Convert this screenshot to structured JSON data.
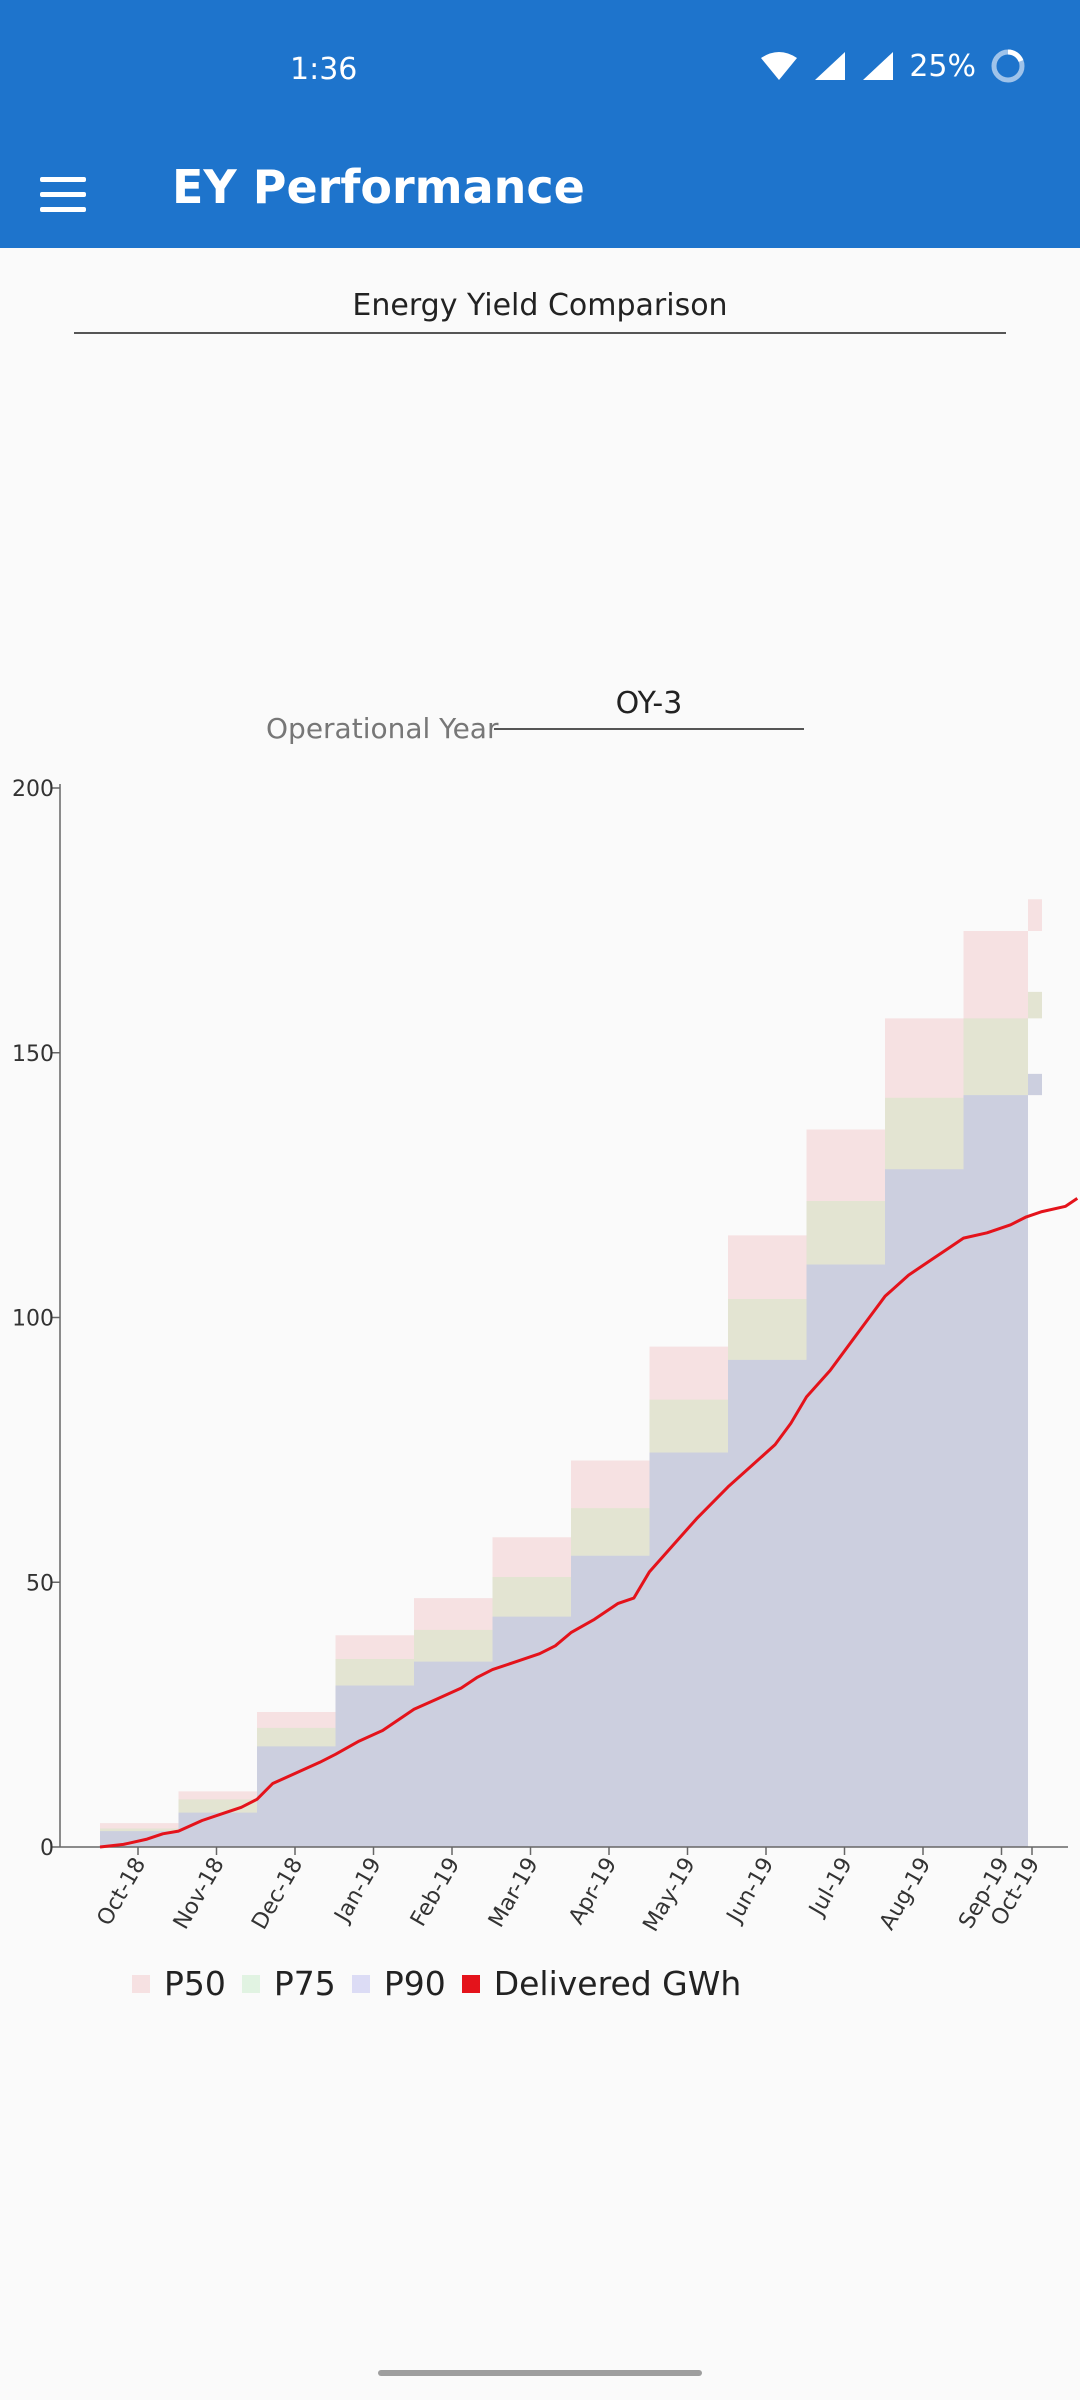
{
  "status_bar": {
    "time": "1:36",
    "battery": "25%",
    "icons": [
      "wifi-icon",
      "signal-icon",
      "signal-icon",
      "battery-icon"
    ]
  },
  "app_bar": {
    "title": "EY Performance",
    "menu_icon": "menu-icon"
  },
  "comparison_selector": {
    "value": "Energy Yield Comparison"
  },
  "operational_year": {
    "label": "Operational Year",
    "value": "OY-3"
  },
  "colors": {
    "header": "#1e74cc",
    "p50": "#f6e1e2",
    "p75": "#e3e4d2",
    "p90": "#cccfdf",
    "delivered": "#e4131b"
  },
  "chart_data": {
    "type": "area",
    "title": "",
    "xlabel": "",
    "ylabel": "",
    "ylim": [
      0,
      200
    ],
    "yticks": [
      0,
      50,
      100,
      150,
      200
    ],
    "categories": [
      "Oct-18",
      "Nov-18",
      "Dec-18",
      "Jan-19",
      "Feb-19",
      "Mar-19",
      "Apr-19",
      "May-19",
      "Jun-19",
      "Jul-19",
      "Aug-19",
      "Sep-19",
      "Oct-19"
    ],
    "step_series": [
      {
        "name": "P50",
        "values": [
          4.5,
          10.5,
          25.5,
          40,
          47,
          58.5,
          73,
          94.5,
          115.5,
          135.5,
          156.5,
          173,
          179
        ]
      },
      {
        "name": "P75",
        "values": [
          3.5,
          9,
          22.5,
          35.5,
          41,
          51,
          64,
          84.5,
          103.5,
          122,
          141.5,
          156.5,
          161.5
        ]
      },
      {
        "name": "P90",
        "values": [
          3,
          6.5,
          19,
          30.5,
          35,
          43.5,
          55,
          74.5,
          92,
          110,
          128,
          142,
          146
        ]
      }
    ],
    "line_series": {
      "name": "Delivered GWh",
      "x": [
        0,
        0.3,
        0.6,
        0.8,
        1.0,
        1.3,
        1.6,
        1.8,
        2.0,
        2.2,
        2.5,
        2.8,
        3.0,
        3.3,
        3.6,
        3.8,
        4.0,
        4.3,
        4.6,
        4.8,
        5.0,
        5.3,
        5.6,
        5.8,
        6.0,
        6.3,
        6.6,
        6.8,
        7.0,
        7.3,
        7.6,
        7.8,
        8.0,
        8.3,
        8.6,
        8.8,
        9.0,
        9.3,
        9.6,
        9.8,
        10.0,
        10.3,
        10.6,
        10.8,
        11.0,
        11.3,
        11.6,
        11.8,
        12.0,
        12.3,
        12.45
      ],
      "y": [
        0,
        0.5,
        1.5,
        2.5,
        3,
        5,
        6.5,
        7.5,
        9,
        12,
        14,
        16,
        17.5,
        20,
        22,
        24,
        26,
        28,
        30,
        32,
        33.5,
        35,
        36.5,
        38,
        40.5,
        43,
        46,
        47,
        52,
        57,
        62,
        65,
        68,
        72,
        76,
        80,
        85,
        90,
        96,
        100,
        104,
        108,
        111,
        113,
        115,
        116,
        117.5,
        119,
        120,
        121,
        122.5
      ]
    },
    "legend": [
      "P50",
      "P75",
      "P90",
      "Delivered GWh"
    ],
    "legend_position": "bottom-left"
  }
}
